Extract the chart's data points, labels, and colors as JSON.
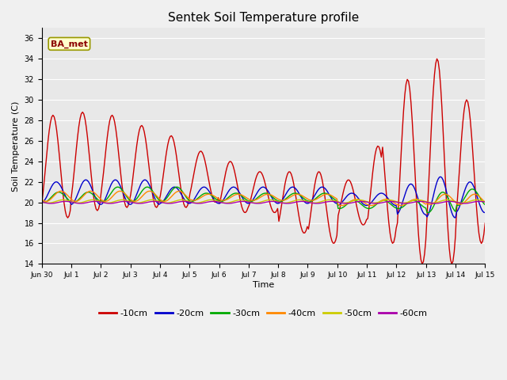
{
  "title": "Sentek Soil Temperature profile",
  "xlabel": "Time",
  "ylabel": "Soil Temperature (C)",
  "ylim": [
    14,
    37
  ],
  "yticks": [
    14,
    16,
    18,
    20,
    22,
    24,
    26,
    28,
    30,
    32,
    34,
    36
  ],
  "annotation": "BA_met",
  "fig_facecolor": "#f0f0f0",
  "axes_facecolor": "#e8e8e8",
  "series": {
    "-10cm": {
      "color": "#cc0000",
      "lw": 1.0
    },
    "-20cm": {
      "color": "#0000cc",
      "lw": 1.0
    },
    "-30cm": {
      "color": "#00aa00",
      "lw": 1.0
    },
    "-40cm": {
      "color": "#ff8800",
      "lw": 1.0
    },
    "-50cm": {
      "color": "#cccc00",
      "lw": 1.0
    },
    "-60cm": {
      "color": "#aa00aa",
      "lw": 1.0
    }
  },
  "xtick_positions": [
    0,
    1,
    2,
    3,
    4,
    5,
    6,
    7,
    8,
    9,
    10,
    11,
    12,
    13,
    14,
    15
  ],
  "xtick_labels": [
    "Jun 30",
    "Jul 1",
    "Jul 2",
    "Jul 3",
    "Jul 4",
    "Jul 5",
    "Jul 6",
    "Jul 7",
    "Jul 8",
    "Jul 9",
    "Jul 10",
    "Jul 11",
    "Jul 12",
    "Jul 13",
    "Jul 14",
    "Jul 15"
  ]
}
